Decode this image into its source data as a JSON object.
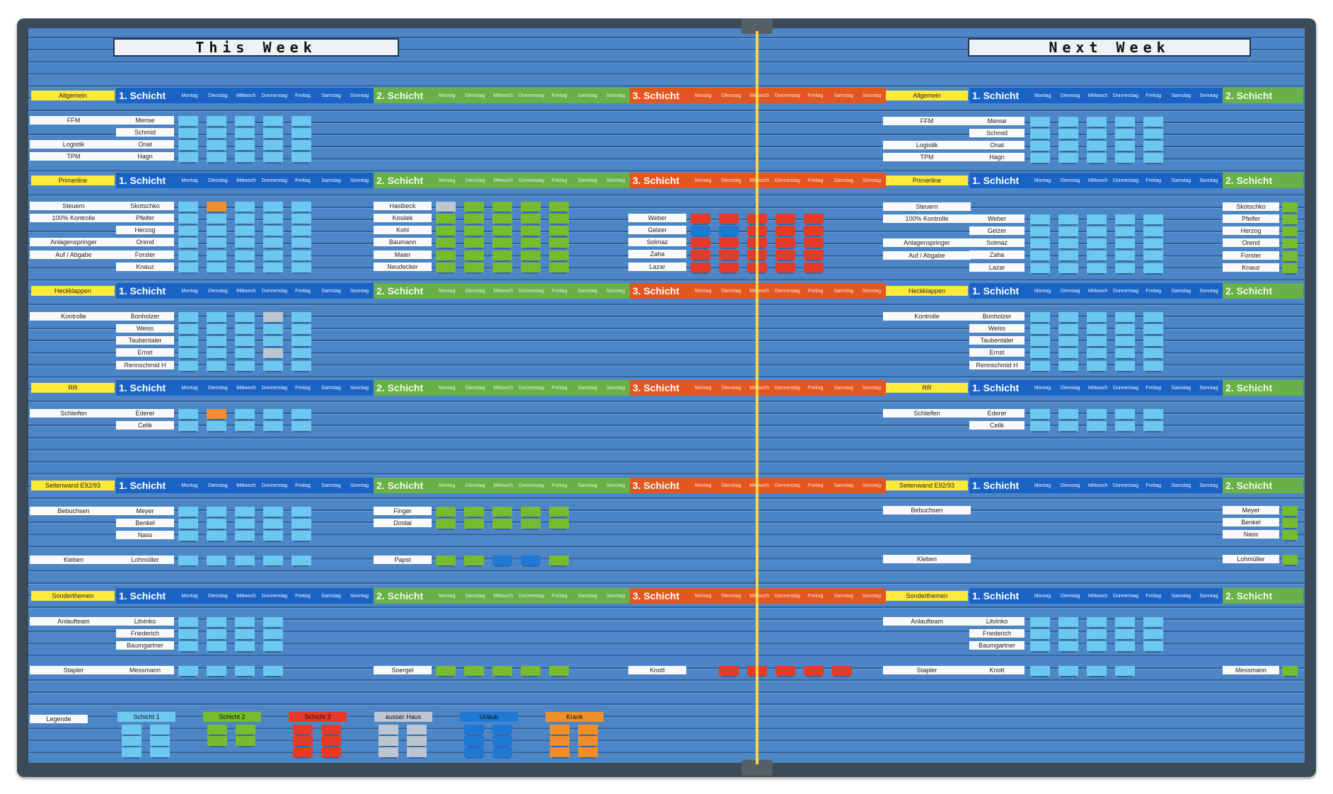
{
  "board": {
    "this_week": "This Week",
    "next_week": "Next Week",
    "day_names": [
      "Montag",
      "Dienstag",
      "Mittwoch",
      "Donnerstag",
      "Freitag",
      "Samstag",
      "Sonntag"
    ],
    "shift_names": [
      "1. Schicht",
      "2. Schicht",
      "3. Schicht"
    ],
    "colors": {
      "board": "#4d86c6",
      "shift1": "#1a63c4",
      "shift2": "#68b048",
      "shift3": "#e4561f",
      "section_tag": "#ffe93a",
      "track": "#ffd24a"
    }
  },
  "sections": [
    {
      "name": "Allgemein"
    },
    {
      "name": "Primerline"
    },
    {
      "name": "Heckklappen"
    },
    {
      "name": "RR"
    },
    {
      "name": "Seitenwand E92/93"
    },
    {
      "name": "Sonderthemen"
    }
  ],
  "this_week_rows": {
    "allgemein": {
      "tasks": [
        "FFM",
        "Logistik",
        "TPM"
      ],
      "s1": [
        "Mense",
        "Schmid",
        "Onat",
        "Hagn"
      ]
    },
    "primerline": {
      "tasks": [
        "Steuern",
        "100% Kontrolle",
        "Anlagenspringer",
        "Auf / Abgabe"
      ],
      "s1": [
        "Skotschko",
        "Pfeifer",
        "Herzog",
        "Orend",
        "Forster",
        "Knauz"
      ],
      "s2": [
        "Haslbeck",
        "Kosilek",
        "Kohl",
        "Baumann",
        "Maier",
        "Neudecker"
      ],
      "s3": [
        "Weber",
        "Gelzer",
        "Solmaz",
        "Zaha",
        "Lazar"
      ]
    },
    "heckklappen": {
      "tasks": [
        "Kontrolle"
      ],
      "s1": [
        "Bonholzer",
        "Weiss",
        "Taubentaler",
        "Ernst",
        "Rennschmid H"
      ]
    },
    "rr": {
      "tasks": [
        "Schleifen"
      ],
      "s1": [
        "Ederer",
        "Celik"
      ]
    },
    "seitenwand": {
      "tasks": [
        "Bebuchsen",
        "Kleben"
      ],
      "s1": [
        "Meyer",
        "Benkel",
        "Nass",
        "Lohmüller"
      ],
      "s2": [
        "Finger",
        "Dostal",
        "Papst"
      ]
    },
    "sonderthemen": {
      "tasks": [
        "Anlaufteam",
        "Stapler"
      ],
      "s1": [
        "Litvinko",
        "Friederich",
        "Baumgartner",
        "Messmann"
      ],
      "s2": [
        "Soergel"
      ],
      "s3": [
        "Knott"
      ]
    }
  },
  "next_week_rows": {
    "allgemein": {
      "tasks": [
        "FFM",
        "Logistik",
        "TPM"
      ],
      "s1": [
        "Mense",
        "Schmid",
        "Onat",
        "Hagn"
      ]
    },
    "primerline": {
      "tasks": [
        "Steuern",
        "100% Kontrolle",
        "Anlagenspringer",
        "Auf / Abgabe"
      ],
      "s1": [
        "Weber",
        "Gelzer",
        "Solmaz",
        "Zaha",
        "Lazar"
      ],
      "s2": [
        "Skotschko",
        "Pfeifer",
        "Herzog",
        "Orend",
        "Forster",
        "Knauz"
      ]
    },
    "heckklappen": {
      "tasks": [
        "Kontrolle"
      ],
      "s1": [
        "Bonholzer",
        "Weiss",
        "Taubentaler",
        "Ernst",
        "Rennschmid H"
      ]
    },
    "rr": {
      "tasks": [
        "Schleifen"
      ],
      "s1": [
        "Ederer",
        "Celik"
      ]
    },
    "seitenwand": {
      "tasks": [
        "Bebuchsen",
        "Kleben"
      ],
      "s2": [
        "Meyer",
        "Benkel",
        "Nass",
        "Lohmüller"
      ]
    },
    "sonderthemen": {
      "tasks": [
        "Anlaufteam",
        "Stapler"
      ],
      "s1": [
        "Litvinko",
        "Friederich",
        "Baumgartner",
        "Knott"
      ],
      "s2": [
        "Messmann"
      ]
    }
  },
  "legend": {
    "label": "Legende",
    "items": [
      {
        "label": "Schicht 1",
        "color": "#6dc8f0"
      },
      {
        "label": "Schicht 2",
        "color": "#77bb2e"
      },
      {
        "label": "Schicht 3",
        "color": "#e63a28"
      },
      {
        "label": "ausser Haus",
        "color": "#bcc6d2"
      },
      {
        "label": "Urlaub",
        "color": "#1e78d4"
      },
      {
        "label": "Krank",
        "color": "#ef8f2a"
      }
    ]
  }
}
